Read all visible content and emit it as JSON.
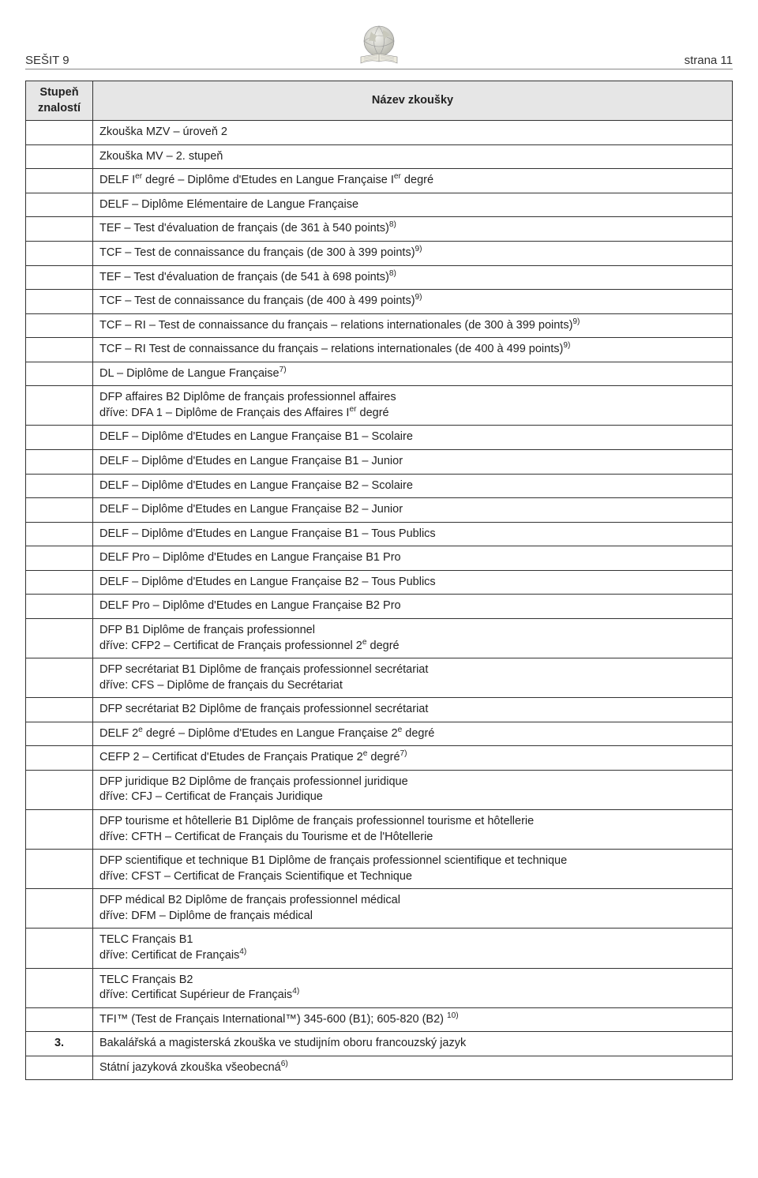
{
  "header": {
    "left": "SEŠIT 9",
    "right": "strana 11"
  },
  "table": {
    "header": {
      "col_level": "Stupeň znalostí",
      "col_name": "Název zkoušky"
    },
    "rows": [
      {
        "level": "",
        "name_html": "Zkouška MZV – úroveň 2"
      },
      {
        "level": "",
        "name_html": "Zkouška MV – 2. stupeň"
      },
      {
        "level": "",
        "name_html": "DELF  I<sup>er</sup> degré – Diplôme d'Etudes en Langue Française I<sup>er</sup> degré"
      },
      {
        "level": "",
        "name_html": "DELF  – Diplôme Elémentaire de Langue Française"
      },
      {
        "level": "",
        "name_html": "TEF – Test d'évaluation de français (de 361 à 540 points)<sup>8)</sup>"
      },
      {
        "level": "",
        "name_html": "TCF –  Test de connaissance du français  (de 300 à 399 points)<sup>9)</sup>"
      },
      {
        "level": "",
        "name_html": "TEF – Test d'évaluation de français (de 541 à 698 points)<sup>8)</sup>"
      },
      {
        "level": "",
        "name_html": "TCF –  Test de connaissance du français  (de  400 à 499 points)<sup>9)</sup>"
      },
      {
        "level": "",
        "name_html": "TCF – RI –  Test de connaissance du français – relations internationales  (de 300 à 399 points)<sup>9)</sup>"
      },
      {
        "level": "",
        "name_html": "TCF – RI  Test de connaissance du français – relations internationales   (de 400 à 499 points)<sup>9)</sup>"
      },
      {
        "level": "",
        "name_html": "DL – Diplôme de Langue Française<sup>7)</sup>"
      },
      {
        "level": "",
        "name_html": "DFP affaires B2 Diplôme de français professionnel affaires<br>dříve: DFA 1 – Diplôme de Français des Affaires I<sup>er</sup> degré"
      },
      {
        "level": "",
        "name_html": "DELF – Diplôme d'Etudes en Langue Française B1 – Scolaire"
      },
      {
        "level": "",
        "name_html": "DELF – Diplôme d'Etudes en Langue Française B1 – Junior"
      },
      {
        "level": "",
        "name_html": "DELF – Diplôme d'Etudes en Langue Française B2 – Scolaire"
      },
      {
        "level": "",
        "name_html": "DELF – Diplôme d'Etudes en Langue Française B2 – Junior"
      },
      {
        "level": "",
        "name_html": "DELF – Diplôme d'Etudes en Langue Française B1 – Tous Publics"
      },
      {
        "level": "",
        "name_html": "DELF Pro – Diplôme d'Etudes en Langue Française B1 Pro"
      },
      {
        "level": "",
        "name_html": "DELF – Diplôme d'Etudes en Langue Française B2 – Tous Publics"
      },
      {
        "level": "",
        "name_html": "DELF Pro – Diplôme d'Etudes en Langue Française B2 Pro"
      },
      {
        "level": "",
        "name_html": "DFP B1 Diplôme de français professionnel<br>dříve: CFP2 – Certificat de Français professionnel 2<sup>e</sup> degré"
      },
      {
        "level": "",
        "name_html": "DFP secrétariat B1 Diplôme de français professionnel secrétariat<br>dříve: CFS  – Diplôme de français du Secrétariat"
      },
      {
        "level": "",
        "name_html": "DFP secrétariat B2 Diplôme de français professionnel secrétariat"
      },
      {
        "level": "",
        "name_html": "DELF 2<sup>e</sup> degré – Diplôme d'Etudes en Langue Française 2<sup>e</sup> degré"
      },
      {
        "level": "",
        "name_html": "CEFP 2 – Certificat d'Etudes de Français Pratique  2<sup>e</sup> degré<sup>7)</sup>"
      },
      {
        "level": "",
        "name_html": "DFP juridique B2 Diplôme de français professionnel juridique<br>dříve: CFJ – Certificat de Français Juridique"
      },
      {
        "level": "",
        "name_html": "DFP tourisme et hôtellerie B1 Diplôme de français professionnel tourisme et hôtellerie<br>dříve: CFTH – Certificat de Français du Tourisme et de l'Hôtellerie"
      },
      {
        "level": "",
        "name_html": "DFP scientifique et technique B1 Diplôme de français professionnel scientifique et technique<br>dříve: CFST – Certificat de Français Scientifique et Technique"
      },
      {
        "level": "",
        "name_html": "DFP médical B2 Diplôme de français professionnel médical<br>dříve: DFM – Diplôme de français médical"
      },
      {
        "level": "",
        "name_html": "TELC Français B1<br>dříve: Certificat de Français<sup>4)</sup>"
      },
      {
        "level": "",
        "name_html": "TELC Français B2<br>dříve: Certificat Supérieur de Français<sup>4)</sup>"
      },
      {
        "level": "",
        "name_html": "TFI™ (Test de Français International™)  345-600 (B1); 605-820 (B2) <sup>10)</sup>"
      },
      {
        "level": "3.",
        "name_html": "Bakalářská a magisterská zkouška ve studijním oboru francouzský jazyk"
      },
      {
        "level": "",
        "name_html": "Státní jazyková zkouška všeobecná<sup>6)</sup>"
      }
    ]
  },
  "style": {
    "header_bg": "#e6e6e6",
    "border_color": "#333333",
    "text_color": "#222222",
    "font_size_body": 14.5,
    "font_size_header": 15
  }
}
